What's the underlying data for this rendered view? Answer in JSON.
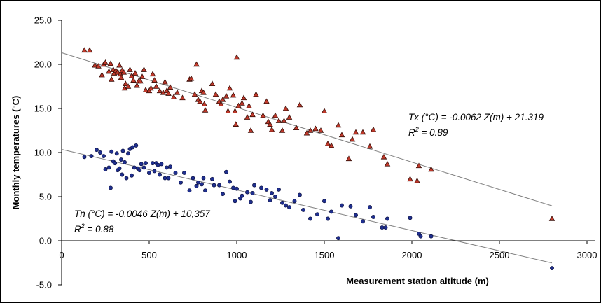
{
  "chart_data": {
    "type": "scatter",
    "title": "",
    "xlabel": "Measurement station altitude (m)",
    "ylabel": "Monthly temperatures (°C)",
    "xlim": [
      0,
      3000
    ],
    "ylim": [
      -5,
      25
    ],
    "x_ticks": [
      0,
      500,
      1000,
      1500,
      2000,
      2500,
      3000
    ],
    "x_tick_labels": [
      "0",
      "500",
      "1000",
      "1500",
      "2000",
      "2500",
      "3000"
    ],
    "y_ticks": [
      -5,
      0,
      5,
      10,
      15,
      20,
      25
    ],
    "y_tick_labels": [
      "-5.0",
      "0.0",
      "5.0",
      "10.0",
      "15.0",
      "20.0",
      "25.0"
    ],
    "grid": false,
    "legend": "none",
    "series": [
      {
        "marker": "triangle",
        "color": "#c0392b",
        "stroke": "#3a0f08",
        "points": [
          [
            130,
            21.6
          ],
          [
            160,
            21.6
          ],
          [
            190,
            19.9
          ],
          [
            210,
            19.8
          ],
          [
            230,
            18.8
          ],
          [
            240,
            20.0
          ],
          [
            250,
            20.2
          ],
          [
            270,
            19.2
          ],
          [
            280,
            20.1
          ],
          [
            285,
            18.3
          ],
          [
            295,
            19.4
          ],
          [
            300,
            19.0
          ],
          [
            310,
            19.3
          ],
          [
            320,
            19.1
          ],
          [
            330,
            19.9
          ],
          [
            335,
            18.9
          ],
          [
            340,
            18.5
          ],
          [
            345,
            19.3
          ],
          [
            355,
            19.1
          ],
          [
            360,
            17.3
          ],
          [
            365,
            17.8
          ],
          [
            380,
            17.5
          ],
          [
            390,
            19.4
          ],
          [
            400,
            18.7
          ],
          [
            410,
            18.2
          ],
          [
            420,
            19.0
          ],
          [
            430,
            17.6
          ],
          [
            440,
            18.1
          ],
          [
            450,
            18.1
          ],
          [
            460,
            18.6
          ],
          [
            470,
            19.4
          ],
          [
            480,
            17.1
          ],
          [
            500,
            17.0
          ],
          [
            510,
            17.3
          ],
          [
            520,
            18.9
          ],
          [
            530,
            18.2
          ],
          [
            540,
            17.5
          ],
          [
            560,
            17.0
          ],
          [
            580,
            16.8
          ],
          [
            590,
            18.0
          ],
          [
            600,
            17.0
          ],
          [
            610,
            16.7
          ],
          [
            620,
            17.4
          ],
          [
            640,
            16.3
          ],
          [
            660,
            16.8
          ],
          [
            690,
            16.2
          ],
          [
            730,
            18.3
          ],
          [
            740,
            18.4
          ],
          [
            760,
            16.6
          ],
          [
            770,
            20.0
          ],
          [
            780,
            16.0
          ],
          [
            790,
            15.8
          ],
          [
            800,
            17.0
          ],
          [
            810,
            16.8
          ],
          [
            815,
            15.5
          ],
          [
            820,
            14.8
          ],
          [
            860,
            17.8
          ],
          [
            880,
            16.6
          ],
          [
            900,
            15.8
          ],
          [
            910,
            15.5
          ],
          [
            920,
            16.0
          ],
          [
            940,
            16.4
          ],
          [
            950,
            14.7
          ],
          [
            960,
            17.3
          ],
          [
            980,
            16.5
          ],
          [
            990,
            14.7
          ],
          [
            995,
            13.2
          ],
          [
            1000,
            20.8
          ],
          [
            1010,
            15.3
          ],
          [
            1030,
            15.6
          ],
          [
            1040,
            16.2
          ],
          [
            1060,
            14.0
          ],
          [
            1070,
            15.3
          ],
          [
            1080,
            12.5
          ],
          [
            1090,
            14.3
          ],
          [
            1110,
            16.6
          ],
          [
            1150,
            14.2
          ],
          [
            1170,
            15.8
          ],
          [
            1180,
            13.5
          ],
          [
            1190,
            13.2
          ],
          [
            1200,
            12.6
          ],
          [
            1220,
            14.2
          ],
          [
            1240,
            13.6
          ],
          [
            1260,
            12.5
          ],
          [
            1270,
            13.6
          ],
          [
            1280,
            15.0
          ],
          [
            1300,
            14.0
          ],
          [
            1340,
            12.8
          ],
          [
            1360,
            15.4
          ],
          [
            1400,
            12.2
          ],
          [
            1420,
            12.5
          ],
          [
            1450,
            12.7
          ],
          [
            1480,
            12.5
          ],
          [
            1500,
            14.7
          ],
          [
            1520,
            11.0
          ],
          [
            1540,
            10.8
          ],
          [
            1580,
            13.1
          ],
          [
            1600,
            12.0
          ],
          [
            1640,
            9.3
          ],
          [
            1660,
            11.5
          ],
          [
            1680,
            12.3
          ],
          [
            1720,
            12.3
          ],
          [
            1760,
            10.7
          ],
          [
            1780,
            12.6
          ],
          [
            1840,
            9.5
          ],
          [
            1860,
            8.7
          ],
          [
            1990,
            7.0
          ],
          [
            2030,
            6.8
          ],
          [
            2040,
            8.5
          ],
          [
            2110,
            8.1
          ],
          [
            2800,
            2.5
          ]
        ]
      },
      {
        "marker": "circle",
        "color": "#1f2f8f",
        "stroke": "#0a0f40",
        "points": [
          [
            130,
            9.5
          ],
          [
            170,
            9.6
          ],
          [
            200,
            10.3
          ],
          [
            220,
            10.0
          ],
          [
            240,
            9.6
          ],
          [
            250,
            8.1
          ],
          [
            270,
            8.3
          ],
          [
            280,
            6.0
          ],
          [
            285,
            10.1
          ],
          [
            295,
            9.0
          ],
          [
            305,
            8.8
          ],
          [
            315,
            9.9
          ],
          [
            320,
            8.0
          ],
          [
            330,
            8.2
          ],
          [
            340,
            9.2
          ],
          [
            345,
            7.5
          ],
          [
            350,
            10.2
          ],
          [
            360,
            8.9
          ],
          [
            370,
            7.1
          ],
          [
            380,
            9.9
          ],
          [
            390,
            10.4
          ],
          [
            400,
            7.4
          ],
          [
            405,
            10.6
          ],
          [
            415,
            8.3
          ],
          [
            425,
            10.8
          ],
          [
            435,
            8.2
          ],
          [
            445,
            8.0
          ],
          [
            455,
            8.7
          ],
          [
            470,
            8.3
          ],
          [
            480,
            8.8
          ],
          [
            500,
            7.7
          ],
          [
            520,
            8.8
          ],
          [
            530,
            7.9
          ],
          [
            540,
            8.8
          ],
          [
            550,
            8.6
          ],
          [
            560,
            7.5
          ],
          [
            570,
            8.7
          ],
          [
            590,
            7.1
          ],
          [
            600,
            8.3
          ],
          [
            610,
            7.1
          ],
          [
            620,
            8.4
          ],
          [
            650,
            7.7
          ],
          [
            680,
            6.6
          ],
          [
            700,
            7.7
          ],
          [
            730,
            5.7
          ],
          [
            750,
            7.1
          ],
          [
            770,
            6.2
          ],
          [
            780,
            6.6
          ],
          [
            800,
            6.4
          ],
          [
            810,
            7.1
          ],
          [
            820,
            5.7
          ],
          [
            860,
            7.0
          ],
          [
            870,
            6.3
          ],
          [
            900,
            6.3
          ],
          [
            920,
            5.3
          ],
          [
            940,
            7.8
          ],
          [
            960,
            6.7
          ],
          [
            980,
            6.0
          ],
          [
            990,
            4.5
          ],
          [
            1000,
            5.9
          ],
          [
            1020,
            4.8
          ],
          [
            1030,
            5.1
          ],
          [
            1060,
            5.5
          ],
          [
            1080,
            4.4
          ],
          [
            1090,
            5.4
          ],
          [
            1100,
            6.3
          ],
          [
            1140,
            6.0
          ],
          [
            1170,
            5.8
          ],
          [
            1190,
            4.6
          ],
          [
            1200,
            5.4
          ],
          [
            1220,
            5.0
          ],
          [
            1240,
            5.8
          ],
          [
            1260,
            4.3
          ],
          [
            1280,
            4.0
          ],
          [
            1300,
            3.8
          ],
          [
            1330,
            4.5
          ],
          [
            1360,
            5.2
          ],
          [
            1380,
            3.5
          ],
          [
            1420,
            2.5
          ],
          [
            1460,
            3.0
          ],
          [
            1500,
            4.5
          ],
          [
            1520,
            2.5
          ],
          [
            1540,
            3.3
          ],
          [
            1580,
            0.3
          ],
          [
            1600,
            4.0
          ],
          [
            1650,
            3.9
          ],
          [
            1680,
            2.9
          ],
          [
            1720,
            2.2
          ],
          [
            1760,
            3.8
          ],
          [
            1780,
            2.7
          ],
          [
            1830,
            1.5
          ],
          [
            1850,
            1.5
          ],
          [
            1860,
            2.5
          ],
          [
            1990,
            2.6
          ],
          [
            2040,
            0.8
          ],
          [
            2050,
            0.5
          ],
          [
            2110,
            0.5
          ],
          [
            2800,
            -3.1
          ]
        ]
      }
    ],
    "trendlines": [
      {
        "slope": -0.0062,
        "intercept": 21.319,
        "x_range": [
          0,
          2800
        ],
        "equation": "Tx (°C) = -0.0062 Z(m) + 21.319",
        "r2_label": "R",
        "r2_sup": "2",
        "r2_value": " = 0.89"
      },
      {
        "slope": -0.0046,
        "intercept": 10.357,
        "x_range": [
          0,
          2800
        ],
        "equation": "Tn (°C) = -0.0046 Z(m) + 10,357",
        "r2_label": "R",
        "r2_sup": "2",
        "r2_value": " = 0.88"
      }
    ]
  }
}
